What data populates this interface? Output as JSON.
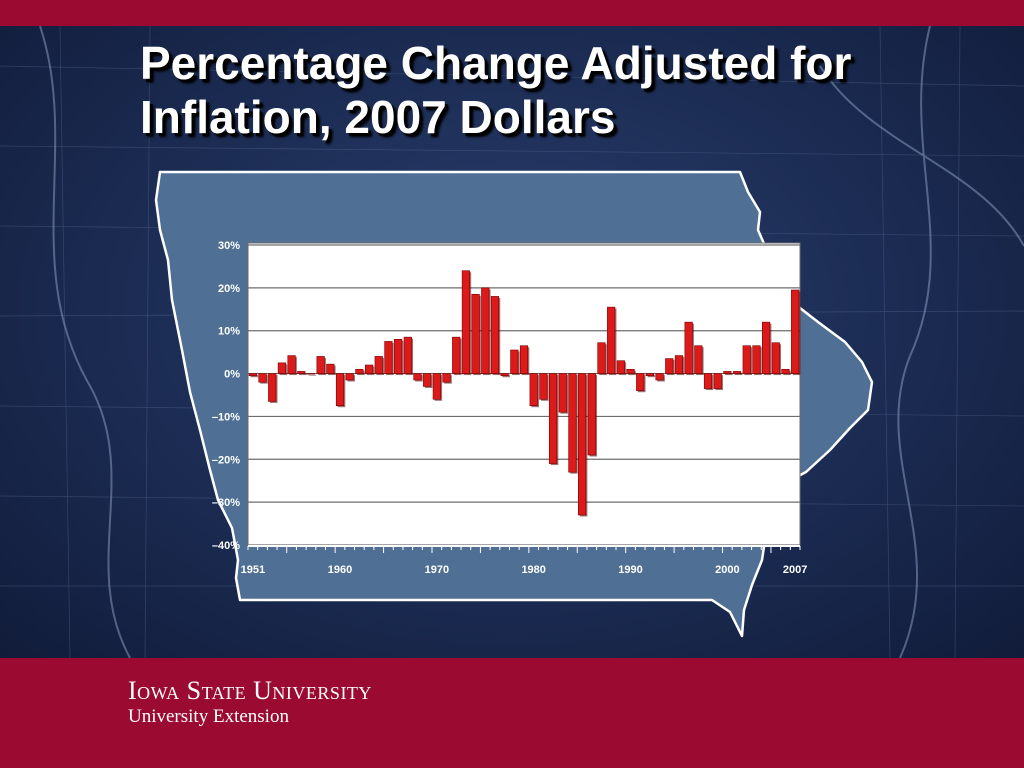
{
  "slide": {
    "title": "Percentage Change Adjusted for Inflation, 2007 Dollars"
  },
  "footer": {
    "university": "Iowa State University",
    "department": "University Extension"
  },
  "colors": {
    "band": "#9b0a30",
    "background": "#1b2b52",
    "state_shape": "#4f6f94",
    "bar": "#dd1a1a",
    "plot_bg": "#ffffff"
  },
  "chart_data": {
    "type": "bar",
    "title": "",
    "xlabel": "",
    "ylabel": "",
    "ylim": [
      -40,
      30
    ],
    "y_ticks": [
      "30%",
      "20%",
      "10%",
      "0%",
      "–10%",
      "–20%",
      "–30%",
      "–40%"
    ],
    "x_tick_labels": [
      "1951",
      "1960",
      "1970",
      "1980",
      "1990",
      "2000",
      "2007"
    ],
    "x_tick_years": [
      1951,
      1960,
      1970,
      1980,
      1990,
      2000,
      2007
    ],
    "grid": true,
    "legend": "none",
    "categories": [
      1951,
      1952,
      1953,
      1954,
      1955,
      1956,
      1957,
      1958,
      1959,
      1960,
      1961,
      1962,
      1963,
      1964,
      1965,
      1966,
      1967,
      1968,
      1969,
      1970,
      1971,
      1972,
      1973,
      1974,
      1975,
      1976,
      1977,
      1978,
      1979,
      1980,
      1981,
      1982,
      1983,
      1984,
      1985,
      1986,
      1987,
      1988,
      1989,
      1990,
      1991,
      1992,
      1993,
      1994,
      1995,
      1996,
      1997,
      1998,
      1999,
      2000,
      2001,
      2002,
      2003,
      2004,
      2005,
      2006,
      2007
    ],
    "values": [
      -0.5,
      -2,
      -6.5,
      2.5,
      4.2,
      0.5,
      0,
      4,
      2.2,
      -7.5,
      -1.5,
      1,
      2,
      4,
      7.5,
      8,
      8.5,
      -1.5,
      -3,
      -6,
      -2,
      8.5,
      24,
      18.5,
      20,
      18,
      -0.5,
      5.5,
      6.5,
      -7.5,
      -6,
      -21,
      -9,
      -23,
      -33,
      -19,
      7.2,
      15.5,
      3,
      1,
      -4,
      -0.5,
      -1.5,
      3.5,
      4.2,
      12,
      6.5,
      -3.5,
      -3.5,
      0.5,
      0.5,
      6.5,
      6.5,
      12,
      7.2,
      1,
      19.5
    ]
  }
}
